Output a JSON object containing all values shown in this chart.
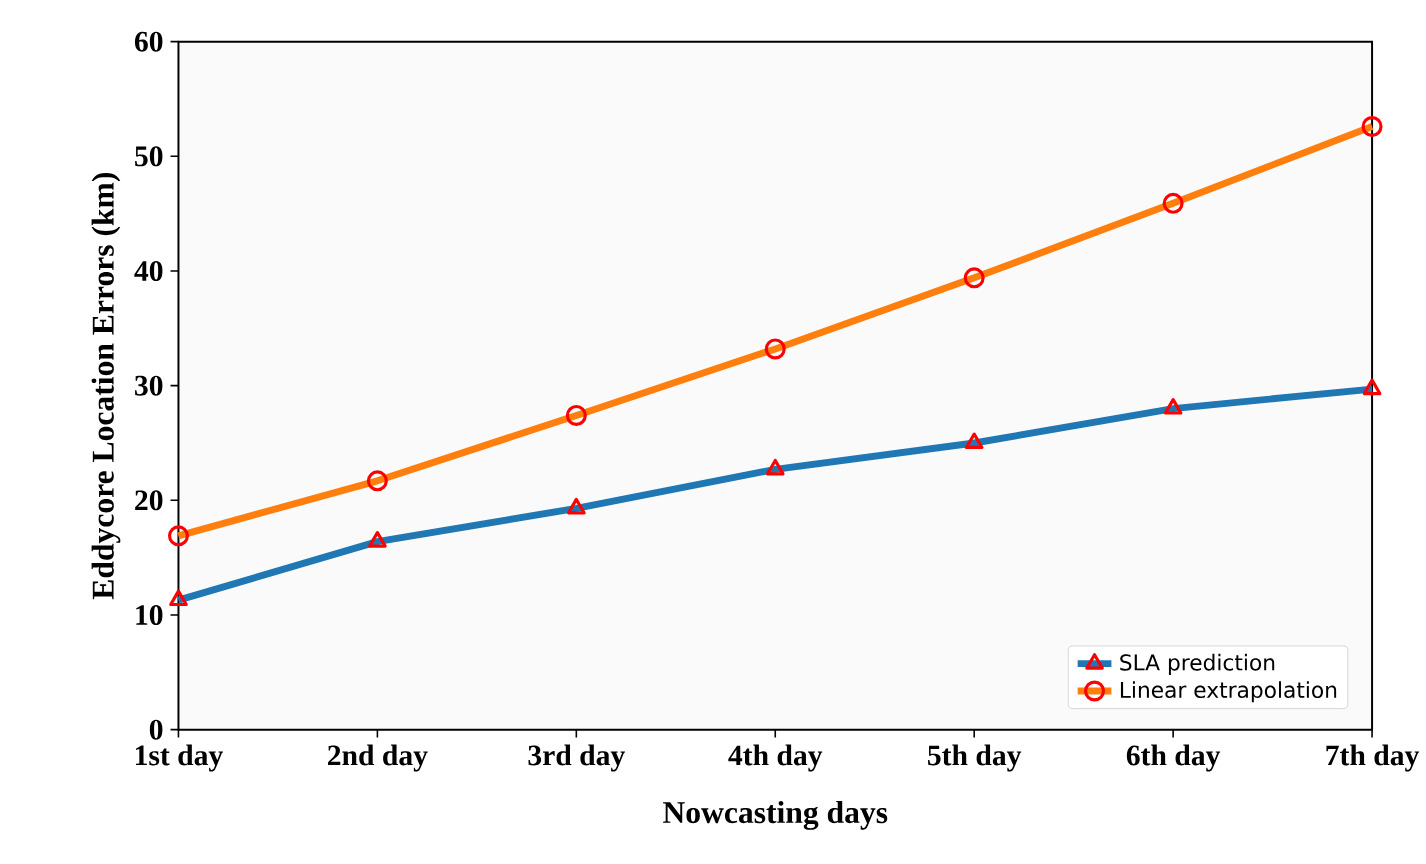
{
  "chart_data": {
    "type": "line",
    "xlabel": "Nowcasting days",
    "ylabel": "Eddycore Location Errors (km)",
    "categories": [
      "1st day",
      "2nd day",
      "3rd day",
      "4th day",
      "5th day",
      "6th day",
      "7th day"
    ],
    "series": [
      {
        "name": "SLA prediction",
        "color": "#1f77b4",
        "marker": "triangle",
        "values": [
          11.3,
          16.4,
          19.3,
          22.7,
          25.0,
          28.0,
          29.7
        ]
      },
      {
        "name": "Linear extrapolation",
        "color": "#ff7f0e",
        "marker": "circle",
        "values": [
          16.9,
          21.7,
          27.4,
          33.2,
          39.4,
          45.9,
          52.6
        ]
      }
    ],
    "ylim": [
      0,
      60
    ],
    "yticks": [
      0,
      10,
      20,
      30,
      40,
      50,
      60
    ],
    "grid": false,
    "legend": "bottom right",
    "line_style": "solid"
  }
}
